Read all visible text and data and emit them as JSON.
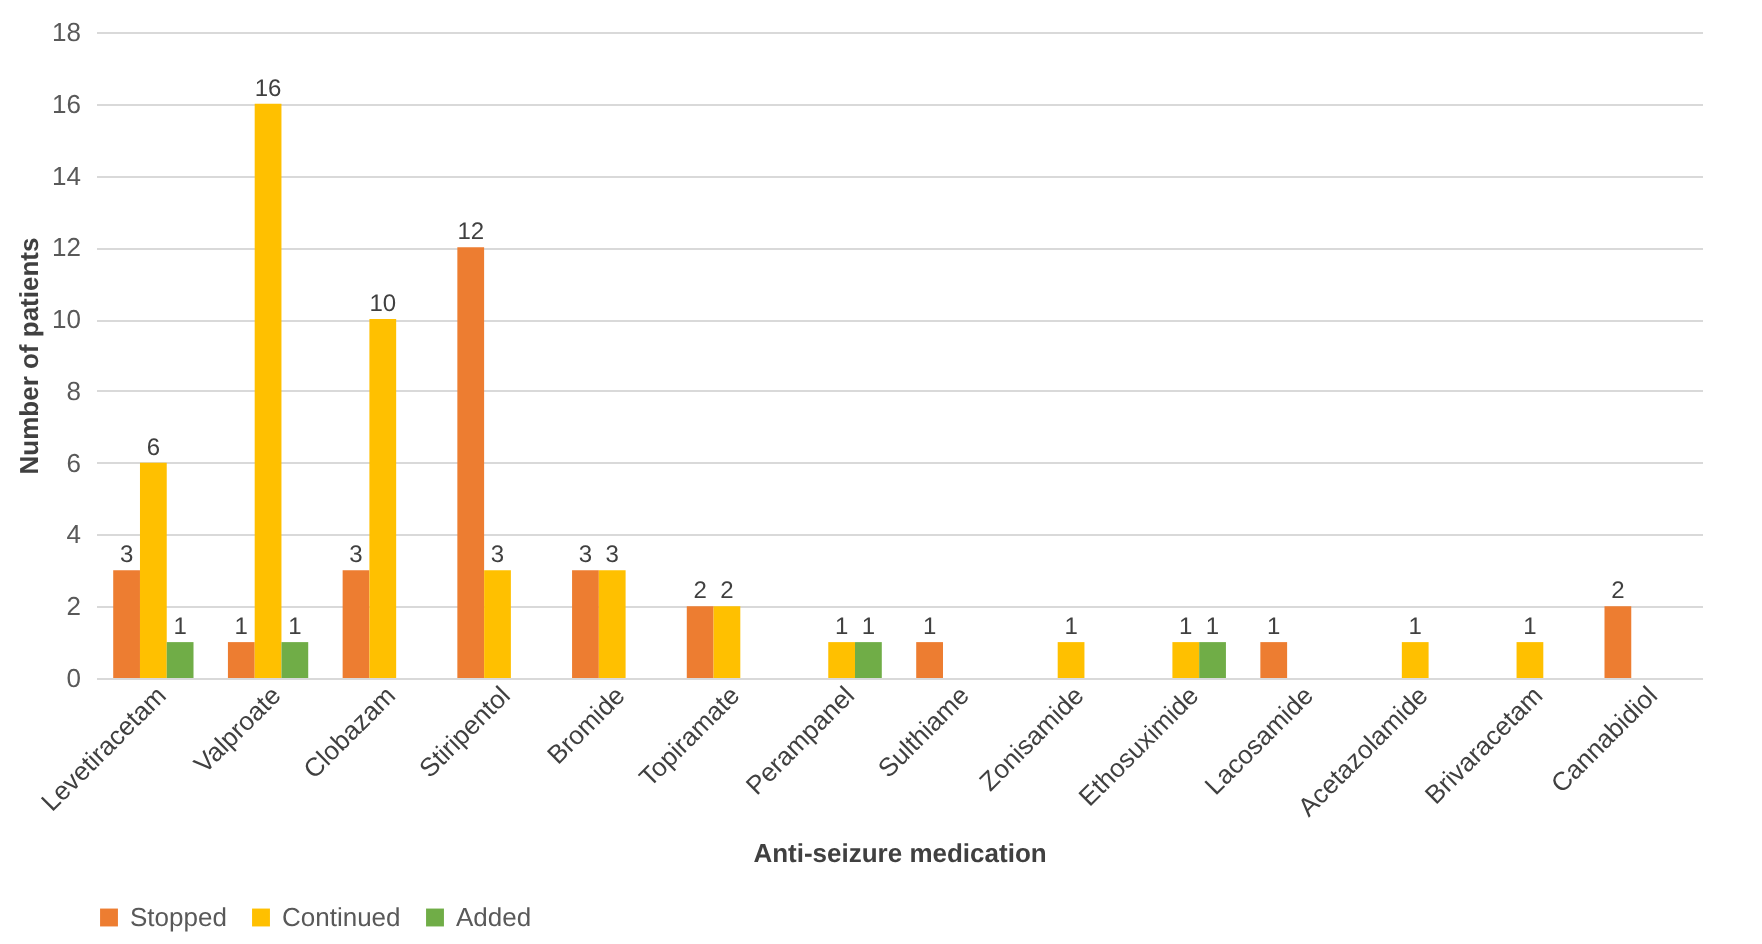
{
  "chart_data": {
    "type": "bar",
    "xlabel": "Anti-seizure medication",
    "ylabel": "Number of patients",
    "categories": [
      "Levetiracetam",
      "Valproate",
      "Clobazam",
      "Stiripentol",
      "Bromide",
      "Topiramate",
      "Perampanel",
      "Sulthiame",
      "Zonisamide",
      "Ethosuximide",
      "Lacosamide",
      "Acetazolamide",
      "Brivaracetam",
      "Cannabidiol"
    ],
    "series": [
      {
        "name": "Stopped",
        "color": "#ed7d31",
        "values": [
          3,
          1,
          3,
          12,
          3,
          2,
          null,
          1,
          null,
          null,
          1,
          null,
          null,
          2
        ]
      },
      {
        "name": "Continued",
        "color": "#ffc000",
        "values": [
          6,
          16,
          10,
          3,
          3,
          2,
          1,
          null,
          1,
          1,
          null,
          1,
          1,
          null
        ]
      },
      {
        "name": "Added",
        "color": "#70ad47",
        "values": [
          1,
          1,
          null,
          null,
          null,
          null,
          1,
          null,
          null,
          1,
          null,
          null,
          null,
          null
        ]
      }
    ],
    "ylim": [
      0,
      18
    ],
    "yticks": [
      0,
      2,
      4,
      6,
      8,
      10,
      12,
      14,
      16,
      18
    ],
    "grid": "y",
    "legend": "bottom",
    "data_labels": true
  }
}
